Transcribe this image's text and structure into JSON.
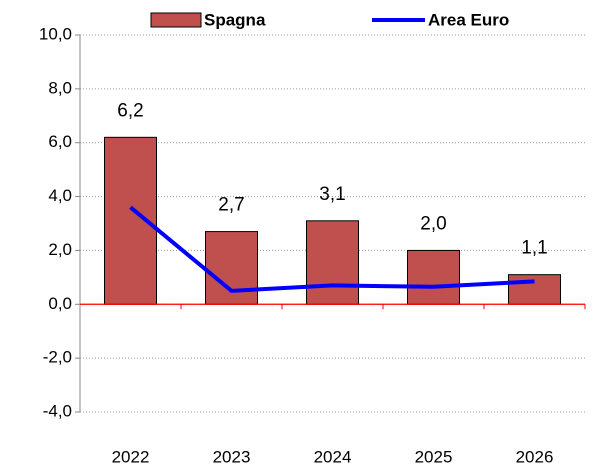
{
  "chart_data": {
    "type": "bar",
    "categories": [
      "2022",
      "2023",
      "2024",
      "2025",
      "2026"
    ],
    "series": [
      {
        "name": "Spagna",
        "type": "bar",
        "color": "#c0504d",
        "values": [
          6.2,
          2.7,
          3.1,
          2.0,
          1.1
        ],
        "value_labels": [
          "6,2",
          "2,7",
          "3,1",
          "2,0",
          "1,1"
        ]
      },
      {
        "name": "Area Euro",
        "type": "line",
        "color": "#0000ff",
        "values": [
          3.6,
          0.5,
          0.7,
          0.65,
          0.85
        ]
      }
    ],
    "ylim": [
      -4,
      10
    ],
    "yticks": [
      {
        "value": -4,
        "label": "-4,0"
      },
      {
        "value": -2,
        "label": "-2,0"
      },
      {
        "value": 0,
        "label": "0,0"
      },
      {
        "value": 2,
        "label": "2,0"
      },
      {
        "value": 4,
        "label": "4,0"
      },
      {
        "value": 6,
        "label": "6,0"
      },
      {
        "value": 8,
        "label": "8,0"
      },
      {
        "value": 10,
        "label": "10,0"
      }
    ],
    "grid": true,
    "legend": "top",
    "negative_tick_color": "#ff0000",
    "zero_line_color": "#ff0000"
  }
}
